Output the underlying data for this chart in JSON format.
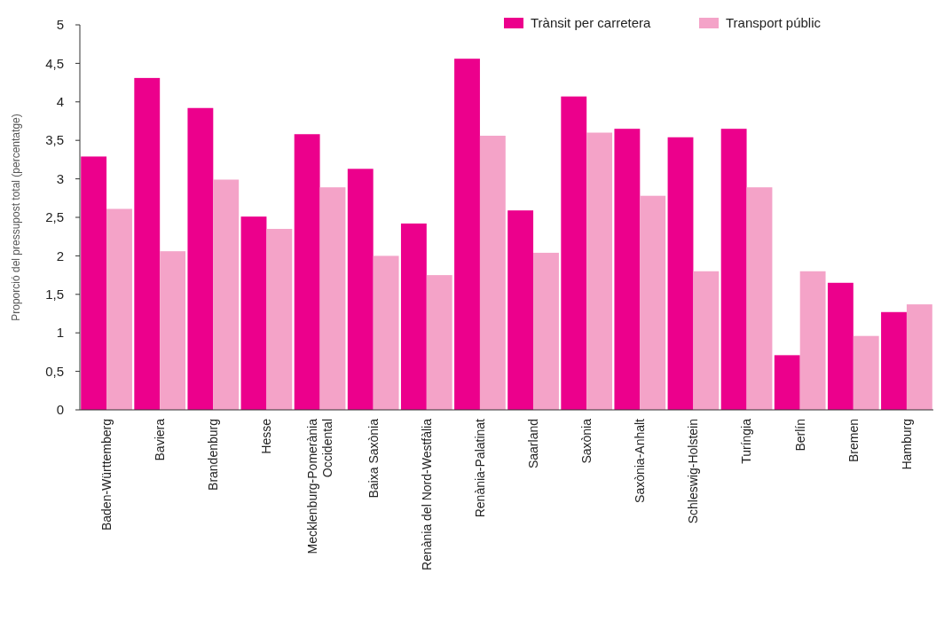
{
  "chart_data": {
    "type": "bar",
    "ylabel": "Proporció del pressupost total (percentatge)",
    "categories": [
      "Baden-Württemberg",
      "Baviera",
      "Brandenburg",
      "Hesse",
      "Mecklenburg-Pomerània Occidental",
      "Baixa Saxònia",
      "Renània del Nord-Westfàlia",
      "Renània-Palatinat",
      "Saarland",
      "Saxònia",
      "Saxònia-Anhalt",
      "Schleswig-Holstein",
      "Turíngia",
      "Berlín",
      "Bremen",
      "Hamburg"
    ],
    "series": [
      {
        "name": "Trànsit per carretera",
        "color": "#ec008c",
        "values": [
          3.29,
          4.31,
          3.92,
          2.51,
          3.58,
          3.13,
          2.42,
          4.56,
          2.59,
          4.07,
          3.65,
          3.54,
          3.65,
          0.71,
          1.65,
          1.27
        ]
      },
      {
        "name": "Transport públic",
        "color": "#f4a3c8",
        "values": [
          2.61,
          2.06,
          2.99,
          2.35,
          2.89,
          2.0,
          1.75,
          3.56,
          2.04,
          3.6,
          2.78,
          1.8,
          2.89,
          1.8,
          0.96,
          1.37
        ]
      }
    ],
    "ylim": [
      0,
      5
    ],
    "yticks": [
      0,
      {
        "value": 0.5,
        "label": "0,5"
      },
      1,
      {
        "value": 1.5,
        "label": "1,5"
      },
      2,
      {
        "value": 2.5,
        "label": "2,5"
      },
      3,
      {
        "value": 3.5,
        "label": "3,5"
      },
      4,
      {
        "value": 4.5,
        "label": "4,5"
      },
      5
    ],
    "grid": false,
    "legend": "top right"
  }
}
